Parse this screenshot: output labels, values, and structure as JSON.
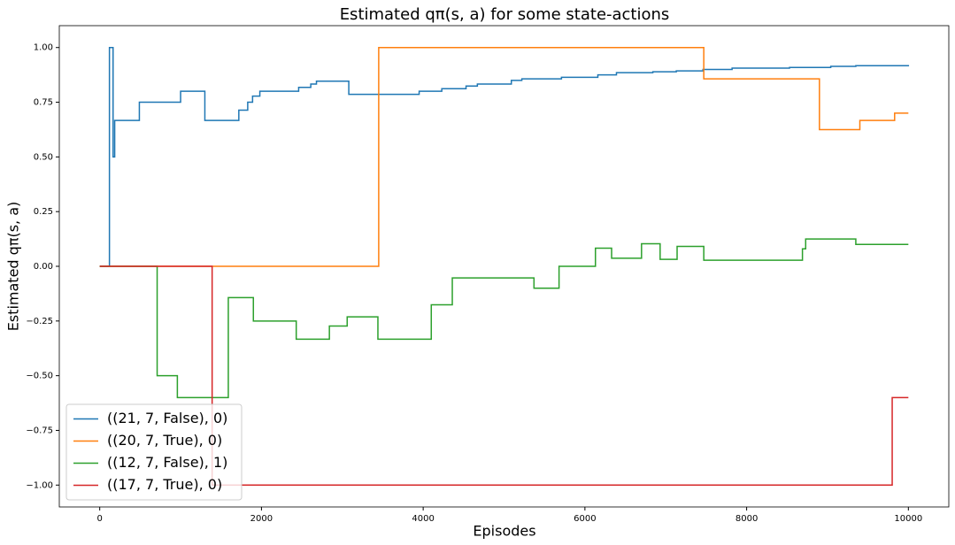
{
  "chart_data": {
    "type": "line",
    "drawstyle": "steps-post",
    "title": "Estimated qπ(s, a) for some state-actions",
    "x_label": "Episodes",
    "y_label": "Estimated qπ(s, a)",
    "xlim": [
      -500,
      10500
    ],
    "ylim": [
      -1.1,
      1.1
    ],
    "xticks": [
      0,
      2000,
      4000,
      6000,
      8000,
      10000
    ],
    "yticks": [
      {
        "value": -1,
        "label": "−1.00"
      },
      {
        "value": -0.75,
        "label": "−0.75"
      },
      {
        "value": -0.5,
        "label": "−0.50"
      },
      {
        "value": -0.25,
        "label": "−0.25"
      },
      {
        "value": 0,
        "label": "0.00"
      },
      {
        "value": 0.25,
        "label": "0.25"
      },
      {
        "value": 0.5,
        "label": "0.50"
      },
      {
        "value": 0.75,
        "label": "0.75"
      },
      {
        "value": 1,
        "label": "1.00"
      }
    ],
    "grid": false,
    "legend": "lower left",
    "series": [
      {
        "name": "((21, 7, False), 0)",
        "color": "#1f77b4",
        "x": [
          0,
          120,
          165,
          185,
          490,
          1000,
          1300,
          1720,
          1830,
          1890,
          1980,
          2460,
          2610,
          2680,
          3080,
          3950,
          4230,
          4530,
          4670,
          5090,
          5220,
          5710,
          6160,
          6390,
          6840,
          7130,
          7460,
          7820,
          8530,
          9040,
          9350,
          10000
        ],
        "values": [
          0,
          1,
          0.5,
          0.667,
          0.75,
          0.8,
          0.667,
          0.714,
          0.75,
          0.778,
          0.8,
          0.818,
          0.833,
          0.846,
          0.786,
          0.8,
          0.812,
          0.824,
          0.833,
          0.85,
          0.857,
          0.864,
          0.875,
          0.885,
          0.889,
          0.893,
          0.9,
          0.906,
          0.909,
          0.914,
          0.917,
          0.92
        ]
      },
      {
        "name": "((20, 7, True), 0)",
        "color": "#ff7f0e",
        "x": [
          0,
          3450,
          7470,
          8900,
          9400,
          9830,
          10000
        ],
        "values": [
          0,
          1,
          0.857,
          0.625,
          0.667,
          0.7,
          0.7
        ]
      },
      {
        "name": "((12, 7, False), 1)",
        "color": "#2ca02c",
        "x": [
          0,
          710,
          960,
          1590,
          1900,
          2430,
          2840,
          3060,
          3440,
          4100,
          4360,
          5370,
          5680,
          6130,
          6330,
          6700,
          6930,
          7140,
          7470,
          8690,
          8730,
          9350,
          10000
        ],
        "values": [
          0,
          -0.5,
          -0.6,
          -0.143,
          -0.25,
          -0.333,
          -0.273,
          -0.231,
          -0.333,
          -0.176,
          -0.053,
          -0.1,
          0,
          0.083,
          0.037,
          0.103,
          0.032,
          0.091,
          0.028,
          0.08,
          0.125,
          0.1,
          0.1
        ]
      },
      {
        "name": "((17, 7, True), 0)",
        "color": "#d62728",
        "x": [
          0,
          1390,
          9800,
          10000
        ],
        "values": [
          0,
          -1,
          -0.6,
          -0.6
        ]
      }
    ]
  }
}
